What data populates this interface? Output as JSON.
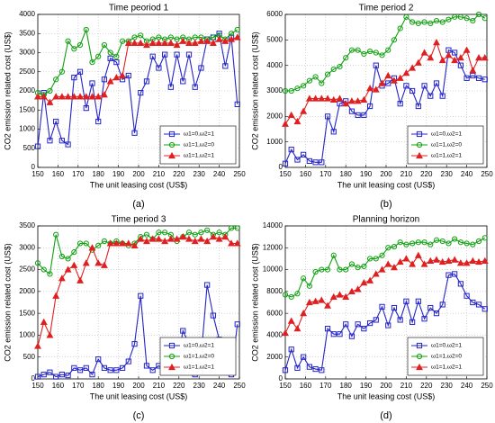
{
  "chart_data": [
    {
      "type": "line",
      "title": "Time peoriod 1",
      "label": "(a)",
      "xlabel": "The unit leasing cost (US$)",
      "ylabel": "CO2 emission related cost (US$)",
      "x": [
        150,
        153,
        156,
        159,
        162,
        165,
        168,
        171,
        174,
        177,
        180,
        183,
        186,
        189,
        192,
        195,
        198,
        201,
        204,
        207,
        210,
        213,
        216,
        219,
        222,
        225,
        228,
        231,
        234,
        237,
        240,
        243,
        246,
        249
      ],
      "xlim": [
        150,
        250
      ],
      "xticks": [
        150,
        160,
        170,
        180,
        190,
        200,
        210,
        220,
        230,
        240,
        250
      ],
      "ylim": [
        0,
        4000
      ],
      "yticks": [
        0,
        500,
        1000,
        1500,
        2000,
        2500,
        3000,
        3500,
        4000
      ],
      "grid": true,
      "legend": "lower right",
      "series": [
        {
          "name": "ω1=0,ω2=1",
          "color": "#2323c8",
          "marker": "square",
          "values": [
            550,
            1950,
            700,
            1200,
            700,
            600,
            2350,
            2500,
            1550,
            2200,
            1200,
            2300,
            2850,
            2750,
            2300,
            2400,
            900,
            1950,
            2250,
            2900,
            2600,
            2950,
            2100,
            2950,
            2250,
            2950,
            2100,
            2600,
            3350,
            3400,
            3500,
            2650,
            3400,
            1650
          ]
        },
        {
          "name": "ω1=1,ω2=0",
          "color": "#10a010",
          "marker": "circle",
          "values": [
            1950,
            1900,
            2000,
            2300,
            2500,
            3300,
            3100,
            3200,
            3600,
            2750,
            2900,
            3200,
            3000,
            2900,
            3300,
            3300,
            3400,
            3450,
            3300,
            3350,
            3400,
            3350,
            3400,
            3350,
            3400,
            3350,
            3400,
            3400,
            3350,
            3400,
            3450,
            3350,
            3500,
            3600
          ]
        },
        {
          "name": "ω1=1,ω2=1",
          "color": "#e02020",
          "marker": "triangle",
          "values": [
            1850,
            1850,
            1700,
            1850,
            1850,
            1850,
            1850,
            1850,
            1850,
            1850,
            1850,
            1900,
            2250,
            2350,
            2400,
            3250,
            3250,
            3250,
            3200,
            3250,
            3250,
            3250,
            3250,
            3200,
            3300,
            3250,
            3250,
            3300,
            3300,
            3250,
            3350,
            3300,
            3350,
            3400
          ]
        }
      ]
    },
    {
      "type": "line",
      "title": "Time period 2",
      "label": "(b)",
      "xlabel": "The unit leasing cost (US$)",
      "ylabel": "CO2 emission related cost (US$)",
      "x": [
        150,
        153,
        156,
        159,
        162,
        165,
        168,
        171,
        174,
        177,
        180,
        183,
        186,
        189,
        192,
        195,
        198,
        201,
        204,
        207,
        210,
        213,
        216,
        219,
        222,
        225,
        228,
        231,
        234,
        237,
        240,
        243,
        246,
        249
      ],
      "xlim": [
        150,
        250
      ],
      "xticks": [
        150,
        160,
        170,
        180,
        190,
        200,
        210,
        220,
        230,
        240,
        250
      ],
      "ylim": [
        0,
        6000
      ],
      "yticks": [
        0,
        1000,
        2000,
        3000,
        4000,
        5000,
        6000
      ],
      "grid": true,
      "legend": "lower right",
      "series": [
        {
          "name": "ω1=0,ω2=1",
          "color": "#2323c8",
          "marker": "square",
          "values": [
            150,
            700,
            300,
            500,
            250,
            200,
            200,
            2000,
            1400,
            2500,
            2600,
            2200,
            2050,
            2050,
            2400,
            4000,
            3200,
            3300,
            3500,
            2500,
            3200,
            3000,
            2400,
            3200,
            2800,
            3300,
            2800,
            4600,
            4500,
            4000,
            3500,
            3600,
            3500,
            3450
          ]
        },
        {
          "name": "ω1=1,ω2=0",
          "color": "#10a010",
          "marker": "circle",
          "values": [
            3000,
            3000,
            3100,
            3200,
            3400,
            3550,
            3300,
            3650,
            3850,
            3950,
            4300,
            4600,
            4600,
            4450,
            4550,
            4500,
            4400,
            4600,
            5000,
            5450,
            5900,
            5700,
            5650,
            5700,
            5650,
            5750,
            5700,
            5800,
            5900,
            5900,
            5850,
            5750,
            6000,
            5850
          ]
        },
        {
          "name": "ω1=1,ω2=1",
          "color": "#e02020",
          "marker": "triangle",
          "values": [
            1700,
            2050,
            1800,
            2200,
            2700,
            2700,
            2700,
            2700,
            2650,
            2700,
            2500,
            2600,
            2600,
            2650,
            3100,
            3050,
            3300,
            3600,
            3400,
            3500,
            3700,
            3900,
            4100,
            4500,
            4300,
            4900,
            4200,
            4400,
            4200,
            4300,
            4600,
            3800,
            4300,
            4300
          ]
        }
      ]
    },
    {
      "type": "line",
      "title": "Time period 3",
      "label": "(c)",
      "xlabel": "The unit leasing cost (US$)",
      "ylabel": "CO2 emission related cost (US$)",
      "x": [
        150,
        153,
        156,
        159,
        162,
        165,
        168,
        171,
        174,
        177,
        180,
        183,
        186,
        189,
        192,
        195,
        198,
        201,
        204,
        207,
        210,
        213,
        216,
        219,
        222,
        225,
        228,
        231,
        234,
        237,
        240,
        243,
        246,
        249
      ],
      "xlim": [
        150,
        250
      ],
      "xticks": [
        150,
        160,
        170,
        180,
        190,
        200,
        210,
        220,
        230,
        240,
        250
      ],
      "ylim": [
        0,
        3500
      ],
      "yticks": [
        0,
        500,
        1000,
        1500,
        2000,
        2500,
        3000,
        3500
      ],
      "grid": true,
      "legend": "lower right",
      "series": [
        {
          "name": "ω1=0,ω2=1",
          "color": "#2323c8",
          "marker": "square",
          "values": [
            50,
            100,
            150,
            50,
            100,
            80,
            250,
            200,
            250,
            100,
            450,
            250,
            200,
            200,
            250,
            400,
            800,
            1900,
            300,
            200,
            300,
            200,
            150,
            300,
            1100,
            800,
            100,
            500,
            2150,
            1450,
            900,
            600,
            100,
            1250
          ]
        },
        {
          "name": "ω1=1,ω2=0",
          "color": "#10a010",
          "marker": "circle",
          "values": [
            2650,
            2500,
            2400,
            3300,
            2800,
            2750,
            2900,
            3100,
            3100,
            2950,
            3050,
            3150,
            3100,
            3150,
            3100,
            3050,
            3100,
            3250,
            3300,
            3200,
            3350,
            3350,
            3300,
            3150,
            3250,
            3350,
            3300,
            3350,
            3400,
            3300,
            3350,
            3300,
            3450,
            3450
          ]
        },
        {
          "name": "ω1=1,ω2=1",
          "color": "#e02020",
          "marker": "triangle",
          "values": [
            750,
            1300,
            1000,
            1900,
            2300,
            2500,
            2600,
            2250,
            2650,
            3000,
            2650,
            2600,
            3100,
            3100,
            3100,
            3100,
            3050,
            3200,
            3150,
            3200,
            3200,
            3150,
            3200,
            3200,
            3250,
            3200,
            3150,
            3200,
            3150,
            3250,
            3200,
            3250,
            3100,
            3100
          ]
        }
      ]
    },
    {
      "type": "line",
      "title": "Planning horizon",
      "label": "(d)",
      "xlabel": "The unit leasing cost (US$)",
      "ylabel": "CO2 emission related cost (US$)",
      "x": [
        150,
        153,
        156,
        159,
        162,
        165,
        168,
        171,
        174,
        177,
        180,
        183,
        186,
        189,
        192,
        195,
        198,
        201,
        204,
        207,
        210,
        213,
        216,
        219,
        222,
        225,
        228,
        231,
        234,
        237,
        240,
        243,
        246,
        249
      ],
      "xlim": [
        150,
        250
      ],
      "xticks": [
        150,
        160,
        170,
        180,
        190,
        200,
        210,
        220,
        230,
        240,
        250
      ],
      "ylim": [
        0,
        14000
      ],
      "yticks": [
        0,
        2000,
        4000,
        6000,
        8000,
        10000,
        12000,
        14000
      ],
      "grid": true,
      "legend": "lower right",
      "series": [
        {
          "name": "ω1=0,ω2=1",
          "color": "#2323c8",
          "marker": "square",
          "values": [
            800,
            2700,
            1000,
            2000,
            1100,
            900,
            800,
            4600,
            4100,
            4100,
            5000,
            3900,
            5000,
            4600,
            5100,
            5400,
            6600,
            4900,
            6500,
            5400,
            7100,
            5200,
            7100,
            5500,
            6500,
            6000,
            6800,
            9500,
            9600,
            8700,
            7600,
            7000,
            6800,
            6400
          ]
        },
        {
          "name": "ω1=1,ω2=0",
          "color": "#10a010",
          "marker": "circle",
          "values": [
            7700,
            7500,
            7800,
            9200,
            8500,
            9800,
            10000,
            10000,
            11300,
            10000,
            10000,
            10500,
            10200,
            10300,
            11000,
            11000,
            11300,
            12000,
            12100,
            12500,
            12300,
            12400,
            12500,
            12500,
            12300,
            12700,
            12600,
            12400,
            12800,
            12500,
            12400,
            12300,
            12600,
            12900
          ]
        },
        {
          "name": "ω1=1,ω2=1",
          "color": "#e02020",
          "marker": "triangle",
          "values": [
            4200,
            5300,
            4600,
            6000,
            7000,
            7100,
            7200,
            6700,
            7500,
            7700,
            7500,
            8000,
            8200,
            8800,
            9000,
            9600,
            10000,
            10500,
            10200,
            10700,
            11000,
            10500,
            11300,
            10500,
            10800,
            10900,
            10700,
            10800,
            10900,
            10600,
            10600,
            10800,
            10700,
            10800
          ]
        }
      ]
    }
  ]
}
